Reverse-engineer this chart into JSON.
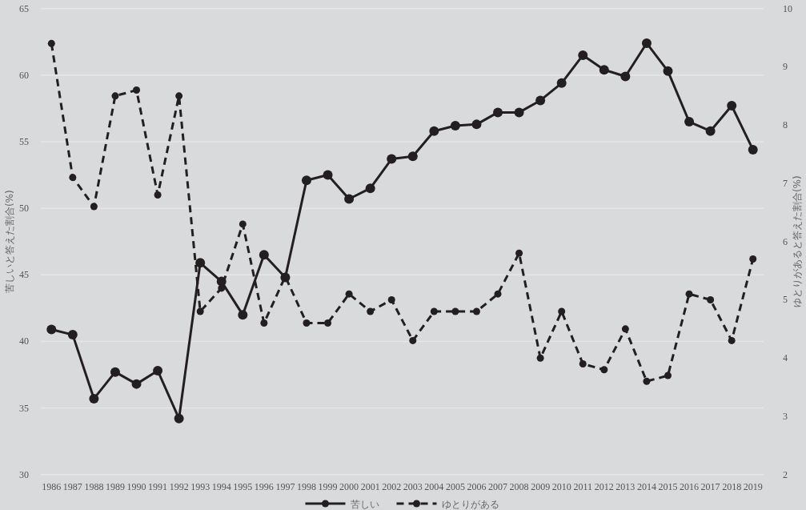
{
  "chart_data": {
    "type": "line",
    "categories": [
      "1986",
      "1987",
      "1988",
      "1989",
      "1990",
      "1991",
      "1992",
      "1993",
      "1994",
      "1995",
      "1996",
      "1997",
      "1998",
      "1999",
      "2000",
      "2001",
      "2002",
      "2003",
      "2004",
      "2005",
      "2006",
      "2007",
      "2008",
      "2009",
      "2010",
      "2011",
      "2012",
      "2013",
      "2014",
      "2015",
      "2016",
      "2017",
      "2018",
      "2019"
    ],
    "series": [
      {
        "name": "苦しい",
        "color": "#231f20",
        "line_style": "solid",
        "values": [
          40.9,
          40.5,
          35.7,
          37.7,
          36.8,
          37.8,
          34.2,
          45.9,
          44.5,
          42.0,
          46.5,
          44.8,
          52.1,
          52.5,
          50.7,
          51.5,
          53.7,
          53.9,
          55.8,
          56.2,
          56.3,
          57.2,
          57.2,
          58.1,
          59.4,
          61.5,
          60.4,
          59.9,
          62.4,
          60.3,
          56.5,
          55.8,
          57.7,
          54.4
        ]
      },
      {
        "name": "ゆとりがある",
        "color": "#231f20",
        "line_style": "dashed",
        "axis": "y2",
        "values": [
          9.4,
          7.1,
          6.6,
          8.5,
          8.6,
          6.8,
          8.5,
          4.8,
          5.2,
          6.3,
          4.6,
          5.4,
          4.6,
          4.6,
          5.1,
          4.8,
          5.0,
          4.3,
          4.8,
          4.8,
          4.8,
          5.1,
          5.8,
          4.0,
          4.8,
          3.9,
          3.8,
          4.5,
          3.6,
          3.7,
          5.1,
          5.0,
          4.3,
          5.7
        ]
      }
    ],
    "marker": "circle",
    "ylabel": "苦しいと答えた割合(%)",
    "y2label": "ゆとりがあると答えた割合(%)",
    "ylim": [
      30,
      65
    ],
    "yticks": [
      30,
      35,
      40,
      45,
      50,
      55,
      60,
      65
    ],
    "y2lim": [
      2,
      10
    ],
    "y2ticks": [
      2,
      3,
      4,
      5,
      6,
      7,
      8,
      9,
      10
    ],
    "grid": "y",
    "legend": "bottom"
  }
}
